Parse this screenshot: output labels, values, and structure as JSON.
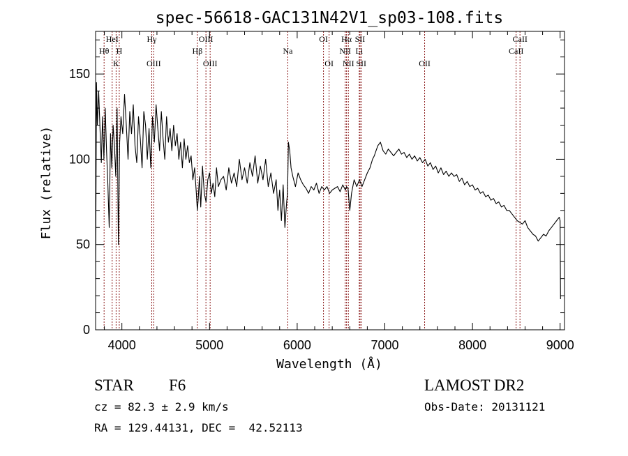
{
  "chart_data": {
    "type": "line",
    "title": "spec-56618-GAC131N42V1_sp03-108.fits",
    "xlabel": "Wavelength (Å)",
    "ylabel": "Flux (relative)",
    "xlim": [
      3700,
      9050
    ],
    "ylim": [
      0,
      175
    ],
    "x_ticks": [
      4000,
      5000,
      6000,
      7000,
      8000,
      9000
    ],
    "y_ticks": [
      0,
      50,
      100,
      150
    ],
    "grid": false,
    "series": [
      {
        "x": [
          3700,
          3710,
          3720,
          3735,
          3750,
          3765,
          3780,
          3795,
          3810,
          3825,
          3840,
          3855,
          3870,
          3885,
          3900,
          3915,
          3930,
          3945,
          3960,
          3975,
          3990,
          4010,
          4030,
          4050,
          4070,
          4090,
          4110,
          4130,
          4150,
          4170,
          4190,
          4210,
          4230,
          4250,
          4270,
          4290,
          4310,
          4330,
          4350,
          4370,
          4390,
          4410,
          4430,
          4450,
          4470,
          4490,
          4510,
          4530,
          4550,
          4570,
          4590,
          4610,
          4630,
          4650,
          4670,
          4690,
          4710,
          4730,
          4750,
          4770,
          4790,
          4810,
          4830,
          4850,
          4861,
          4870,
          4885,
          4900,
          4920,
          4940,
          4960,
          4980,
          5000,
          5020,
          5040,
          5060,
          5080,
          5100,
          5130,
          5160,
          5190,
          5220,
          5250,
          5280,
          5310,
          5340,
          5370,
          5400,
          5430,
          5460,
          5490,
          5520,
          5550,
          5580,
          5610,
          5640,
          5670,
          5700,
          5730,
          5760,
          5780,
          5800,
          5820,
          5840,
          5860,
          5880,
          5890,
          5900,
          5915,
          5930,
          5950,
          5980,
          6010,
          6040,
          6070,
          6100,
          6130,
          6160,
          6190,
          6220,
          6250,
          6280,
          6310,
          6340,
          6370,
          6400,
          6430,
          6460,
          6490,
          6520,
          6550,
          6563,
          6580,
          6600,
          6620,
          6650,
          6680,
          6710,
          6740,
          6770,
          6800,
          6830,
          6860,
          6880,
          6900,
          6920,
          6950,
          6980,
          7010,
          7040,
          7070,
          7100,
          7130,
          7160,
          7190,
          7220,
          7250,
          7280,
          7310,
          7340,
          7370,
          7400,
          7430,
          7460,
          7490,
          7520,
          7550,
          7580,
          7610,
          7640,
          7670,
          7700,
          7730,
          7760,
          7790,
          7820,
          7850,
          7880,
          7910,
          7940,
          7970,
          8000,
          8030,
          8060,
          8090,
          8120,
          8150,
          8180,
          8210,
          8240,
          8270,
          8300,
          8330,
          8360,
          8390,
          8420,
          8450,
          8480,
          8510,
          8540,
          8570,
          8600,
          8630,
          8660,
          8690,
          8720,
          8750,
          8780,
          8810,
          8840,
          8870,
          8900,
          8930,
          8960,
          8990,
          9000,
          9005
        ],
        "y": [
          30,
          145,
          120,
          140,
          118,
          98,
          125,
          100,
          130,
          105,
          85,
          60,
          115,
          95,
          120,
          108,
          90,
          130,
          50,
          110,
          125,
          115,
          138,
          120,
          100,
          128,
          115,
          132,
          108,
          98,
          125,
          112,
          95,
          128,
          120,
          100,
          118,
          95,
          125,
          110,
          132,
          118,
          105,
          128,
          112,
          100,
          125,
          110,
          118,
          105,
          120,
          108,
          115,
          100,
          110,
          95,
          112,
          100,
          108,
          98,
          102,
          88,
          95,
          80,
          70,
          76,
          90,
          72,
          96,
          80,
          75,
          88,
          92,
          80,
          86,
          78,
          95,
          84,
          88,
          90,
          82,
          95,
          86,
          92,
          84,
          100,
          88,
          95,
          86,
          98,
          90,
          102,
          86,
          96,
          88,
          100,
          84,
          92,
          80,
          88,
          70,
          82,
          64,
          85,
          60,
          75,
          80,
          110,
          105,
          95,
          90,
          84,
          92,
          88,
          85,
          83,
          80,
          84,
          82,
          86,
          80,
          84,
          82,
          84,
          80,
          82,
          83,
          84,
          81,
          85,
          82,
          84,
          83,
          70,
          80,
          88,
          84,
          88,
          84,
          88,
          92,
          95,
          100,
          102,
          105,
          108,
          110,
          105,
          103,
          106,
          104,
          102,
          104,
          106,
          103,
          104,
          101,
          103,
          100,
          102,
          99,
          101,
          98,
          100,
          96,
          98,
          94,
          96,
          92,
          95,
          91,
          93,
          90,
          92,
          90,
          91,
          87,
          89,
          85,
          87,
          84,
          85,
          82,
          83,
          80,
          81,
          78,
          79,
          76,
          77,
          74,
          75,
          72,
          73,
          70,
          70,
          68,
          66,
          64,
          63,
          62,
          64,
          60,
          58,
          56,
          55,
          52,
          54,
          56,
          55,
          58,
          60,
          62,
          64,
          66,
          64,
          18
        ]
      }
    ],
    "lines": [
      {
        "x": 3797,
        "label": "Hθ",
        "row": 1
      },
      {
        "x": 3889,
        "label": "HeI",
        "row": 0
      },
      {
        "x": 3934,
        "label": "K",
        "row": 2
      },
      {
        "x": 3970,
        "label": "H",
        "row": 1
      },
      {
        "x": 4341,
        "label": "Hγ",
        "row": 0
      },
      {
        "x": 4363,
        "label": "OIII",
        "row": 2
      },
      {
        "x": 4861,
        "label": "Hβ",
        "row": 1
      },
      {
        "x": 4959,
        "label": "OIII",
        "row": 0
      },
      {
        "x": 5007,
        "label": "OIII",
        "row": 2
      },
      {
        "x": 5893,
        "label": "Na",
        "row": 1
      },
      {
        "x": 6300,
        "label": "OI",
        "row": 0
      },
      {
        "x": 6364,
        "label": "OI",
        "row": 2
      },
      {
        "x": 6548,
        "label": "NII",
        "row": 1
      },
      {
        "x": 6563,
        "label": "Hα",
        "row": 0
      },
      {
        "x": 6584,
        "label": "NII",
        "row": 2
      },
      {
        "x": 6708,
        "label": "Li",
        "row": 1
      },
      {
        "x": 6717,
        "label": "SII",
        "row": 0
      },
      {
        "x": 6731,
        "label": "SII",
        "row": 2
      },
      {
        "x": 7454,
        "label": "OII",
        "row": 2
      },
      {
        "x": 8498,
        "label": "CaII",
        "row": 1
      },
      {
        "x": 8542,
        "label": "CaII",
        "row": 0
      }
    ],
    "line_color": "#8b1a1a",
    "spectrum_color": "#000000"
  },
  "info": {
    "class": "STAR",
    "subclass": "F6",
    "survey": "LAMOST DR2",
    "redshift": "cz = 82.3 ± 2.9 km/s",
    "obs_date": "Obs-Date: 20131121",
    "coords": "RA = 129.44131, DEC =  42.52113"
  }
}
